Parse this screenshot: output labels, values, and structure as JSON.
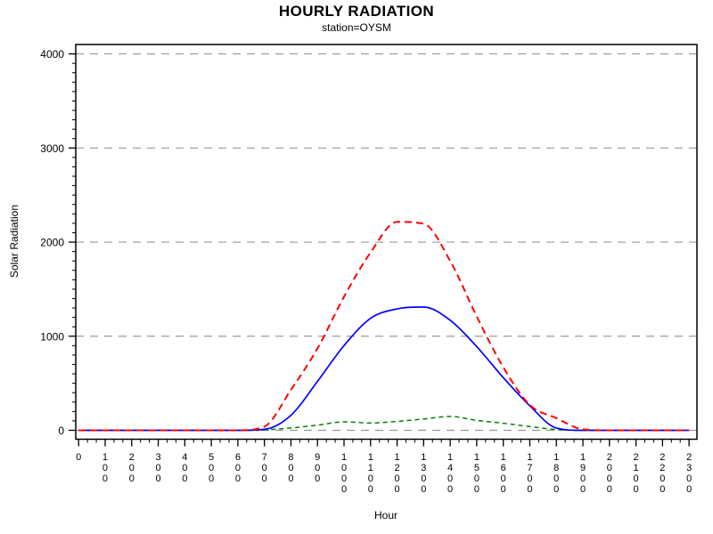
{
  "chart_data": {
    "type": "line",
    "title": "HOURLY RADIATION",
    "subtitle": "station=OYSM",
    "xlabel": "Hour",
    "ylabel": "Solar Radiation",
    "x": [
      0,
      100,
      200,
      300,
      400,
      500,
      600,
      700,
      800,
      900,
      1000,
      1100,
      1200,
      1300,
      1400,
      1500,
      1600,
      1700,
      1800,
      1900,
      2000,
      2100,
      2200,
      2300
    ],
    "xtick_labels": [
      "0",
      "100",
      "200",
      "300",
      "400",
      "500",
      "600",
      "700",
      "800",
      "900",
      "1000",
      "1100",
      "1200",
      "1300",
      "1400",
      "1500",
      "1600",
      "1700",
      "1800",
      "1900",
      "2000",
      "2100",
      "2200",
      "2300"
    ],
    "yticks": [
      0,
      1000,
      2000,
      3000,
      4000
    ],
    "ytick_labels": [
      "0",
      "1000",
      "2000",
      "3000",
      "4000"
    ],
    "ylim": [
      -100,
      4100
    ],
    "y_minor_step": 100,
    "x_minors_per_interval": 2,
    "grid": {
      "horizontal": true,
      "style": "dashed",
      "color": "#999999"
    },
    "legend": "none",
    "axis_color": "#000000",
    "series": [
      {
        "name": "upper-dashed-red",
        "color": "#ff0000",
        "line_style": "dashed",
        "width": 2,
        "values": [
          0,
          0,
          0,
          0,
          0,
          0,
          0,
          40,
          430,
          870,
          1420,
          1890,
          2215,
          2195,
          1800,
          1210,
          670,
          270,
          130,
          10,
          0,
          0,
          0,
          0
        ]
      },
      {
        "name": "middle-solid-blue",
        "color": "#0000ff",
        "line_style": "solid",
        "width": 1.7,
        "values": [
          0,
          0,
          0,
          0,
          0,
          0,
          0,
          10,
          160,
          520,
          900,
          1190,
          1290,
          1310,
          1170,
          890,
          560,
          260,
          25,
          0,
          0,
          0,
          0,
          0
        ]
      },
      {
        "name": "lower-dashed-green",
        "color": "#008000",
        "line_style": "dashed",
        "width": 1.5,
        "values": [
          0,
          0,
          0,
          0,
          0,
          0,
          0,
          5,
          25,
          55,
          90,
          78,
          95,
          120,
          148,
          105,
          75,
          40,
          8,
          0,
          0,
          0,
          0,
          0
        ]
      }
    ]
  }
}
